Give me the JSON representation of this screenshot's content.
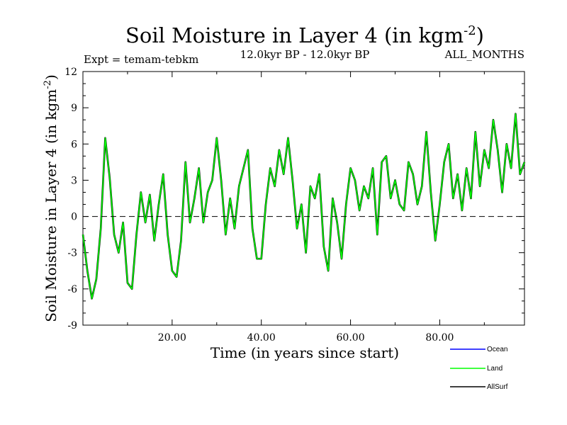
{
  "chart_data": {
    "type": "line",
    "title_main": "Soil Moisture in Layer 4 (in kgm",
    "title_sup": "-2",
    "title_close": ")",
    "expt_label": "Expt = temam-tebkm",
    "period_label": "12.0kyr BP - 12.0kyr BP",
    "months_label": "ALL_MONTHS",
    "ylabel_main": "Soil Moisture in Layer 4 (in kgm",
    "ylabel_sup": "-2",
    "ylabel_close": ")",
    "xlabel": "Time (in years since start)",
    "xlim": [
      0,
      99
    ],
    "ylim": [
      -9,
      12
    ],
    "yticks": [
      12,
      9,
      6,
      3,
      0,
      -3,
      -6,
      -9
    ],
    "xticks": [
      20,
      40,
      60,
      80
    ],
    "xtick_labels": [
      "20.00",
      "40.00",
      "60.00",
      "80.00"
    ],
    "zero_line": "dashed",
    "colors": {
      "ocean": "#0000ff",
      "land": "#00ff00",
      "allsurf": "#000000"
    },
    "legend": [
      {
        "name": "Ocean",
        "color": "#0000ff"
      },
      {
        "name": "Land",
        "color": "#00ff00"
      },
      {
        "name": "AllSurf",
        "color": "#000000"
      }
    ],
    "series": [
      {
        "name": "Land",
        "x_start": 0,
        "x_step": 1,
        "values": [
          -1.5,
          -4.5,
          -6.8,
          -5.2,
          -1.0,
          6.5,
          3.2,
          -1.5,
          -3.0,
          -0.5,
          -5.5,
          -6.0,
          -1.5,
          2.0,
          -0.5,
          1.8,
          -2.0,
          1.0,
          3.5,
          -1.5,
          -4.5,
          -5.0,
          -2.0,
          4.5,
          -0.5,
          1.5,
          4.0,
          -0.5,
          2.0,
          3.0,
          6.5,
          3.0,
          -1.5,
          1.5,
          -1.0,
          2.5,
          4.0,
          5.5,
          -1.0,
          -3.5,
          -3.5,
          1.0,
          4.0,
          2.5,
          5.5,
          3.5,
          6.5,
          3.0,
          -1.0,
          1.0,
          -3.0,
          2.5,
          1.5,
          3.5,
          -2.5,
          -4.5,
          1.5,
          -0.5,
          -3.5,
          1.0,
          4.0,
          3.0,
          0.5,
          2.5,
          1.5,
          4.0,
          -1.5,
          4.5,
          5.0,
          1.5,
          3.0,
          1.0,
          0.5,
          4.5,
          3.5,
          1.0,
          2.5,
          7.0,
          2.0,
          -2.0,
          1.0,
          4.5,
          6.0,
          1.5,
          3.5,
          0.5,
          4.0,
          1.5,
          7.0,
          2.5,
          5.5,
          4.0,
          8.0,
          5.5,
          2.0,
          6.0,
          4.0,
          8.5,
          3.5,
          4.5
        ]
      }
    ]
  }
}
